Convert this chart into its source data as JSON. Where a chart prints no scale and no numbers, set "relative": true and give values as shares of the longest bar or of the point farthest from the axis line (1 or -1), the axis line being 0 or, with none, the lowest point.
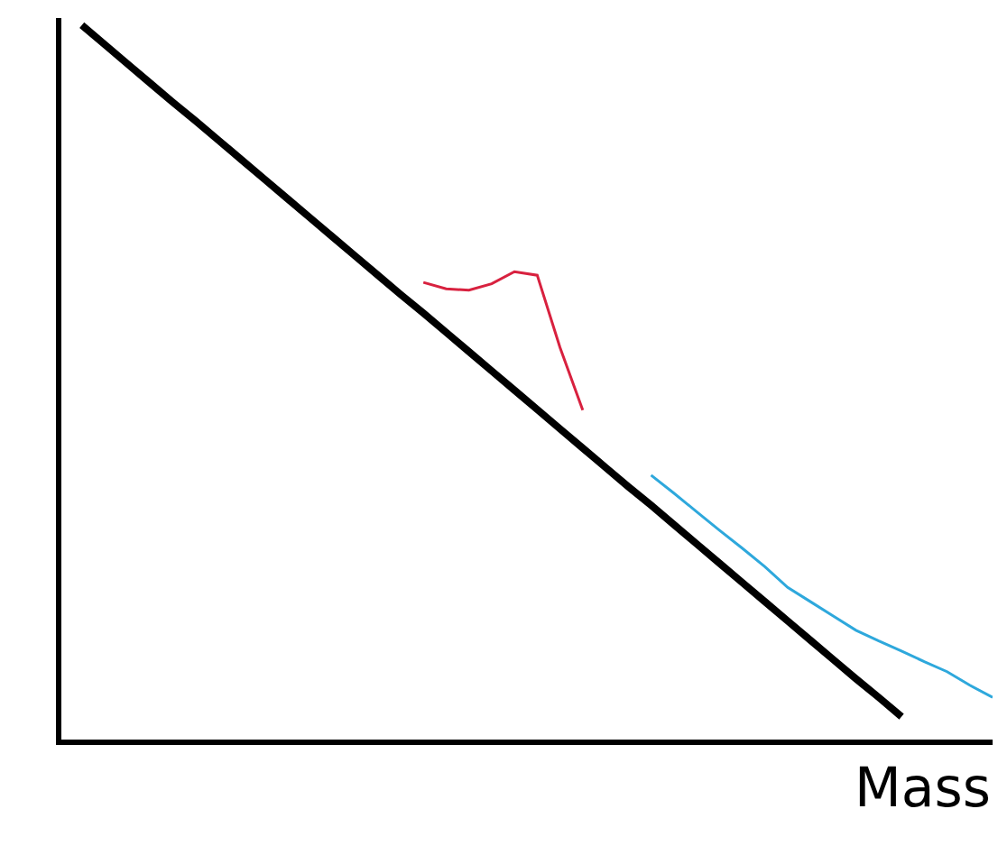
{
  "chart_data": {
    "type": "line",
    "relative": true,
    "xlabel": "Mass",
    "grid": false,
    "categories": [
      null,
      null,
      null,
      null,
      null,
      null,
      null,
      null,
      null,
      null,
      null,
      null,
      null,
      null,
      null,
      null,
      null,
      null,
      null,
      null,
      null,
      null,
      null,
      null,
      null,
      null,
      null,
      null,
      null,
      null,
      null,
      null,
      null,
      null,
      null,
      null,
      null,
      null,
      null,
      null,
      null
    ],
    "series": [
      {
        "color": "#000000",
        "values": [
          1.0,
          0.973,
          0.946,
          0.919,
          0.892,
          0.866,
          0.839,
          0.812,
          0.785,
          0.758,
          0.731,
          0.704,
          0.677,
          0.65,
          0.623,
          0.597,
          0.57,
          0.543,
          0.516,
          0.489,
          0.462,
          0.435,
          0.408,
          0.381,
          0.354,
          0.328,
          0.301,
          0.274,
          0.247,
          0.22,
          0.193,
          0.166,
          0.139,
          0.112,
          0.085,
          0.059,
          0.032,
          null,
          null,
          null,
          null
        ]
      },
      {
        "color": "#d8213f",
        "values": [
          null,
          null,
          null,
          null,
          null,
          null,
          null,
          null,
          null,
          null,
          null,
          null,
          null,
          null,
          null,
          0.64,
          0.631,
          0.629,
          0.638,
          0.655,
          0.65,
          0.549,
          0.461,
          null,
          null,
          null,
          null,
          null,
          null,
          null,
          null,
          null,
          null,
          null,
          null,
          null,
          null,
          null,
          null,
          null,
          null
        ]
      },
      {
        "color": "#2ea8dc",
        "values": [
          null,
          null,
          null,
          null,
          null,
          null,
          null,
          null,
          null,
          null,
          null,
          null,
          null,
          null,
          null,
          null,
          null,
          null,
          null,
          null,
          null,
          null,
          null,
          null,
          null,
          0.37,
          0.345,
          0.319,
          0.293,
          0.268,
          0.242,
          0.213,
          0.193,
          0.173,
          0.153,
          0.138,
          0.124,
          0.109,
          0.095,
          0.076,
          0.059
        ]
      }
    ]
  }
}
